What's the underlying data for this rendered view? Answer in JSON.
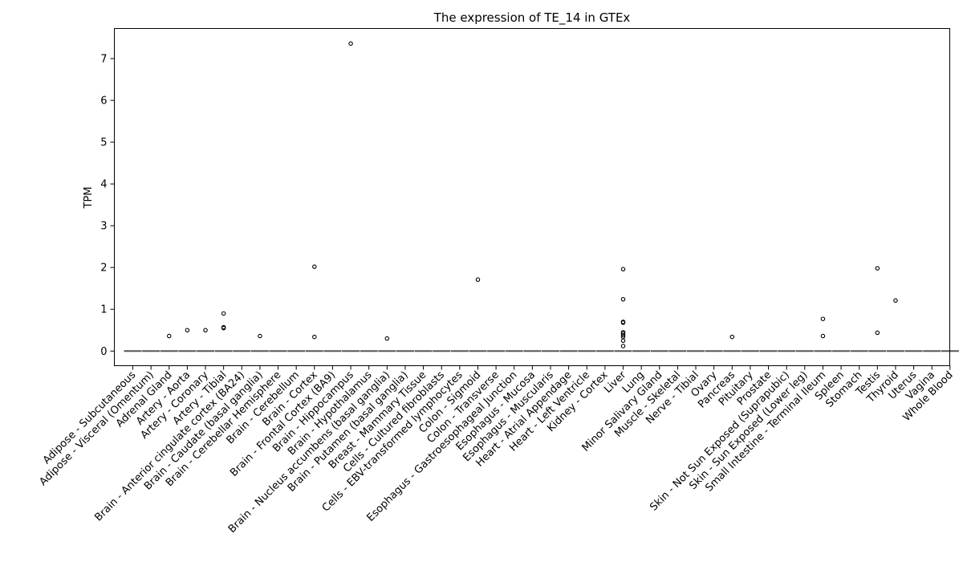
{
  "chart_data": {
    "type": "box",
    "title": "The expression of TE_14 in GTEx",
    "xlabel": "",
    "ylabel": "TPM",
    "ylim": [
      -0.35,
      7.72
    ],
    "yticks": [
      0,
      1,
      2,
      3,
      4,
      5,
      6,
      7
    ],
    "grid": false,
    "categories": [
      "Adipose - Subcutaneous",
      "Adipose - Visceral (Omentum)",
      "Adrenal Gland",
      "Artery - Aorta",
      "Artery - Coronary",
      "Artery - Tibial",
      "Brain - Anterior cingulate cortex (BA24)",
      "Brain - Caudate (basal ganglia)",
      "Brain - Cerebellar Hemisphere",
      "Brain - Cerebellum",
      "Brain - Cortex",
      "Brain - Frontal Cortex (BA9)",
      "Brain - Hippocampus",
      "Brain - Hypothalamus",
      "Brain - Nucleus accumbens (basal ganglia)",
      "Brain - Putamen (basal ganglia)",
      "Breast - Mammary Tissue",
      "Cells - Cultured fibroblasts",
      "Cells - EBV-transformed lymphocytes",
      "Colon - Sigmoid",
      "Colon - Transverse",
      "Esophagus - Gastroesophageal Junction",
      "Esophagus - Mucosa",
      "Esophagus - Muscularis",
      "Heart - Atrial Appendage",
      "Heart - Left Ventricle",
      "Kidney - Cortex",
      "Liver",
      "Lung",
      "Minor Salivary Gland",
      "Muscle - Skeletal",
      "Nerve - Tibial",
      "Ovary",
      "Pancreas",
      "Pituitary",
      "Prostate",
      "Skin - Not Sun Exposed (Suprapubic)",
      "Skin - Sun Exposed (Lower leg)",
      "Small Intestine - Terminal Ileum",
      "Spleen",
      "Stomach",
      "Testis",
      "Thyroid",
      "Uterus",
      "Vagina",
      "Whole Blood"
    ],
    "median": 0,
    "outliers": [
      [],
      [],
      [
        0.36
      ],
      [
        0.5
      ],
      [
        0.5
      ],
      [
        0.9,
        0.57,
        0.55
      ],
      [],
      [
        0.36
      ],
      [],
      [],
      [
        2.02,
        0.34
      ],
      [],
      [
        7.36
      ],
      [],
      [
        0.3
      ],
      [],
      [],
      [],
      [],
      [
        1.71
      ],
      [],
      [],
      [],
      [],
      [],
      [],
      [],
      [
        1.96,
        1.24,
        0.7,
        0.68,
        0.45,
        0.42,
        0.38,
        0.34,
        0.25,
        0.12
      ],
      [],
      [],
      [],
      [],
      [],
      [
        0.34
      ],
      [],
      [],
      [],
      [],
      [
        0.77,
        0.36
      ],
      [],
      [],
      [
        1.98,
        0.44
      ],
      [
        1.21
      ],
      [],
      [],
      []
    ]
  }
}
